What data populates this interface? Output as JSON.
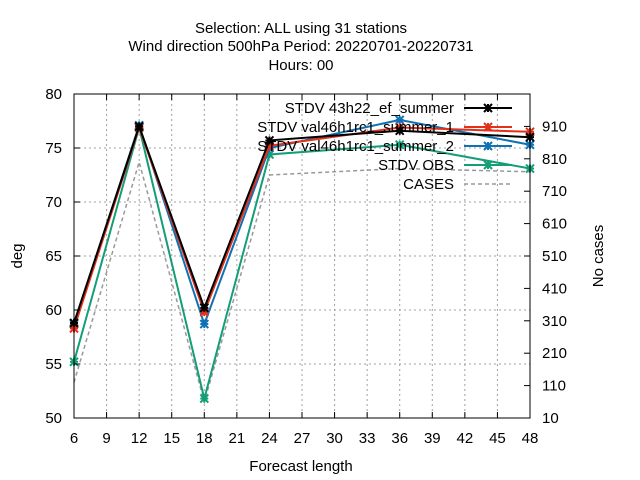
{
  "chart_data": {
    "type": "line",
    "title_lines": [
      "Selection: ALL using    31 stations",
      "Wind direction 500hPa   Period: 20220701-20220731",
      "Hours:  00"
    ],
    "xlabel": "Forecast length",
    "ylabel": "deg",
    "y2label": "No cases",
    "x": [
      6,
      12,
      18,
      24,
      36,
      48
    ],
    "xlim": [
      6,
      48
    ],
    "xticks": [
      6,
      9,
      12,
      15,
      18,
      21,
      24,
      27,
      30,
      33,
      36,
      39,
      42,
      45,
      48
    ],
    "ylim": [
      50,
      80
    ],
    "yticks": [
      50,
      55,
      60,
      65,
      70,
      75,
      80
    ],
    "y2lim": [
      10,
      1010
    ],
    "y2ticks": [
      10,
      110,
      210,
      310,
      410,
      510,
      610,
      710,
      810,
      910
    ],
    "grid": true,
    "legend_position": "top-right",
    "series": [
      {
        "name": "STDV 43h22_ef_summer",
        "axis": "y1",
        "style": "line-cross",
        "color": "#000000",
        "values": [
          58.8,
          77.0,
          60.2,
          75.7,
          76.6,
          76.0
        ]
      },
      {
        "name": "STDV val46h1rc1_summer_1",
        "axis": "y1",
        "style": "line-cross",
        "color": "#e3301a",
        "values": [
          58.3,
          76.9,
          59.8,
          75.2,
          76.9,
          76.5
        ]
      },
      {
        "name": "STDV val46h1rc1_summer_2",
        "axis": "y1",
        "style": "line-cross",
        "color": "#0f72b5",
        "values": [
          58.7,
          77.1,
          58.7,
          75.0,
          77.6,
          75.3
        ]
      },
      {
        "name": "STDV OBS",
        "axis": "y1",
        "style": "line-cross",
        "color": "#139e77",
        "values": [
          55.2,
          76.9,
          51.8,
          74.4,
          75.3,
          73.1
        ]
      },
      {
        "name": "CASES",
        "axis": "y2",
        "style": "dashed",
        "color": "#999999",
        "values": [
          120,
          800,
          60,
          760,
          780,
          770
        ]
      }
    ]
  }
}
